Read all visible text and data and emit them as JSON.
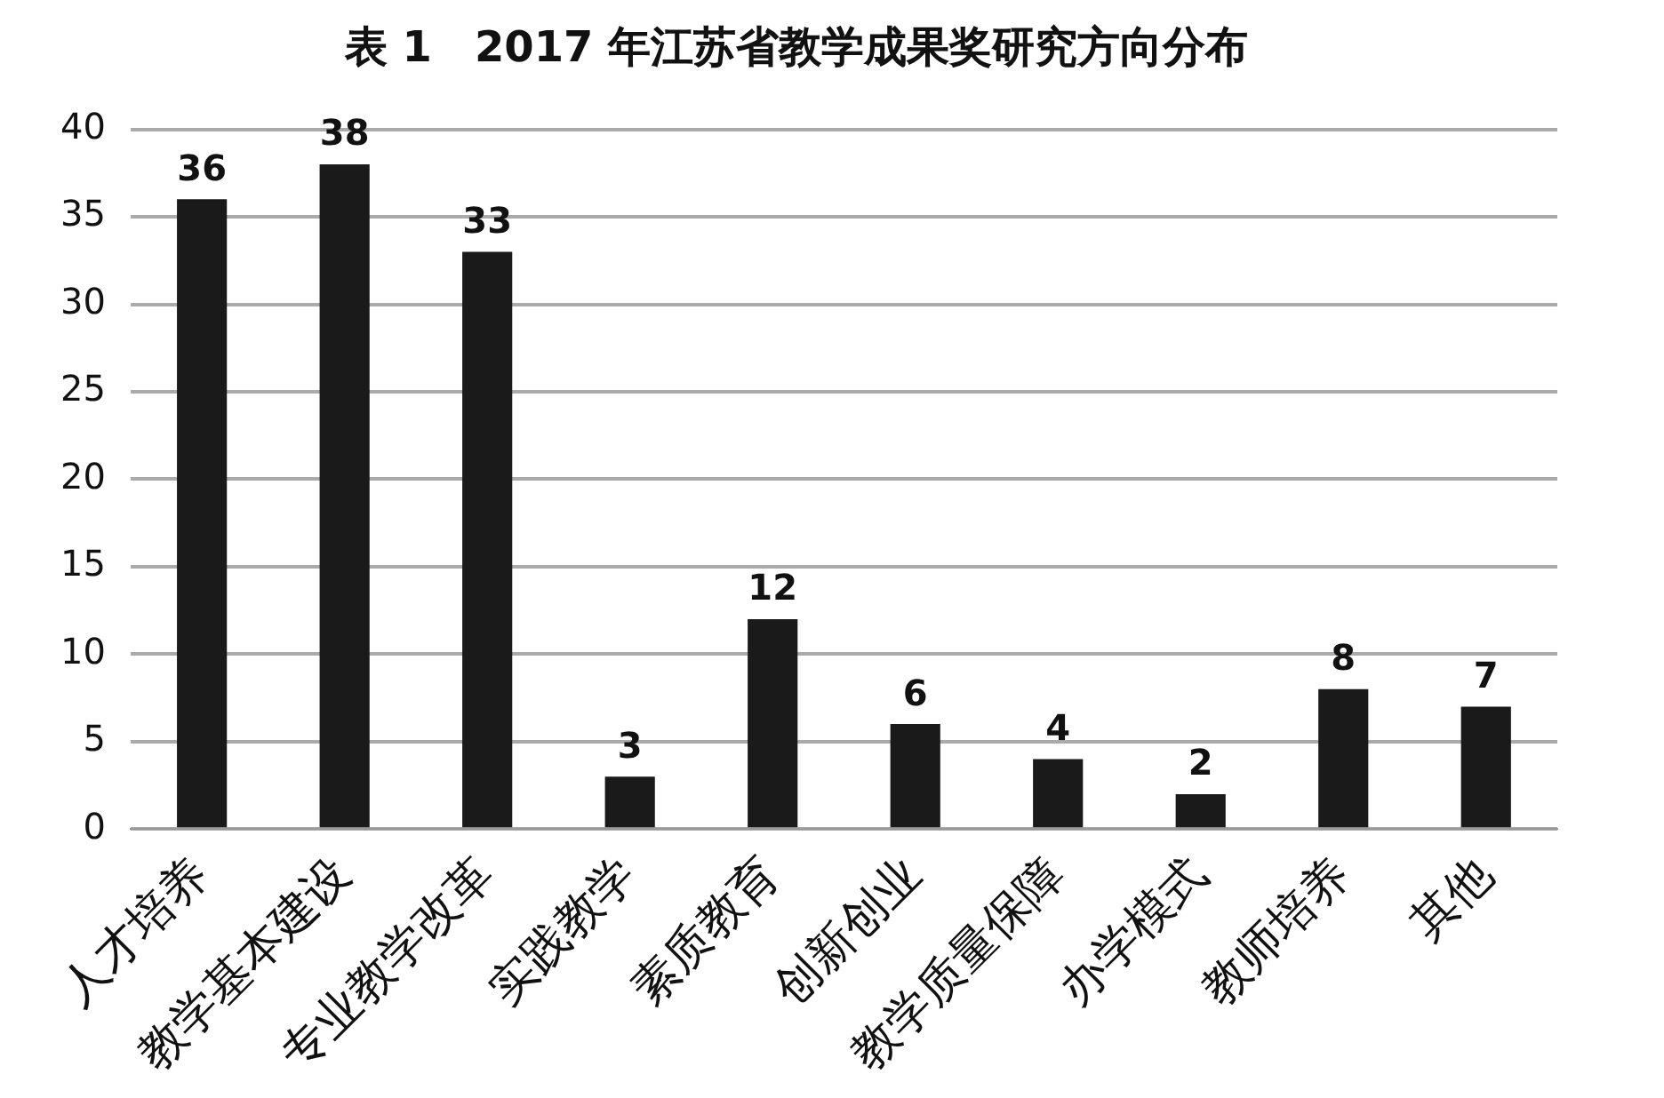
{
  "chart_data": {
    "type": "bar",
    "title": "表 1　2017 年江苏省教学成果奖研究方向分布",
    "categories": [
      "人才培养",
      "教学基本建设",
      "专业教学改革",
      "实践教学",
      "素质教育",
      "创新创业",
      "教学质量保障",
      "办学模式",
      "教师培养",
      "其他"
    ],
    "values": [
      36,
      38,
      33,
      3,
      12,
      6,
      4,
      2,
      8,
      7
    ],
    "color": "#1a1a1a",
    "ylim": [
      0,
      40
    ],
    "yticks": [
      0,
      5,
      10,
      15,
      20,
      25,
      30,
      35,
      40
    ],
    "grid": "y",
    "data_labels": true
  }
}
